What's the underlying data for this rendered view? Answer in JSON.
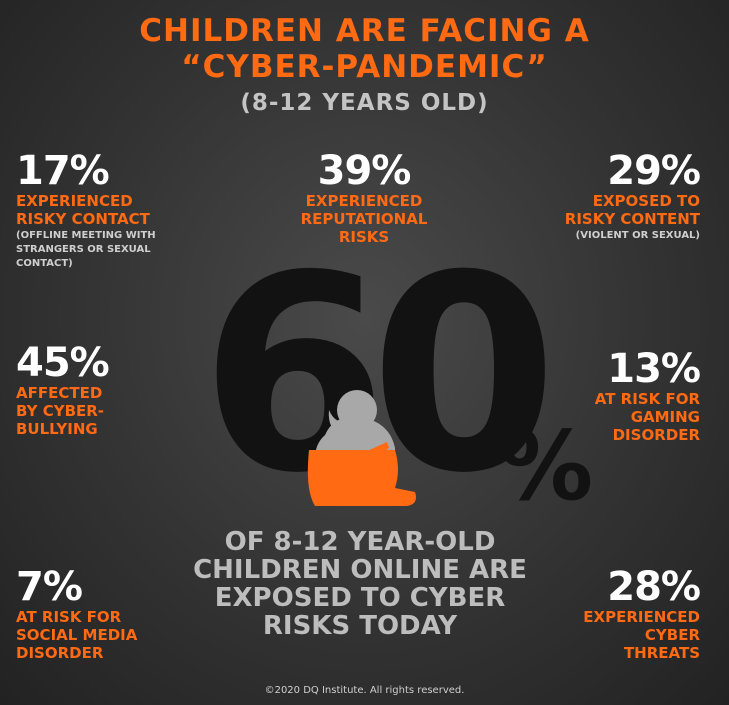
{
  "header": {
    "title_line1": "CHILDREN ARE FACING A",
    "title_line2": "“CYBER-PANDEMIC”",
    "subtitle": "(8-12 YEARS OLD)"
  },
  "stats": {
    "risky_contact": {
      "percent": "17%",
      "line1": "EXPERIENCED",
      "line2": "RISKY CONTACT",
      "note1": "(OFFLINE MEETING WITH",
      "note2": "STRANGERS OR SEXUAL",
      "note3": "CONTACT)"
    },
    "reputational": {
      "percent": "39%",
      "line1": "EXPERIENCED",
      "line2": "REPUTATIONAL",
      "line3": "RISKS"
    },
    "risky_content": {
      "percent": "29%",
      "line1": "EXPOSED TO",
      "line2": "RISKY CONTENT",
      "note1": "(VIOLENT OR SEXUAL)"
    },
    "cyberbullying": {
      "percent": "45%",
      "line1": "AFFECTED",
      "line2": "BY CYBER-",
      "line3": "BULLYING"
    },
    "gaming": {
      "percent": "13%",
      "line1": "AT RISK FOR",
      "line2": "GAMING",
      "line3": "DISORDER"
    },
    "social_media": {
      "percent": "7%",
      "line1": "AT RISK FOR",
      "line2": "SOCIAL MEDIA",
      "line3": "DISORDER"
    },
    "cyber_threats": {
      "percent": "28%",
      "line1": "EXPERIENCED",
      "line2": "CYBER",
      "line3": "THREATS"
    }
  },
  "hero": {
    "big_number": "60",
    "big_percent_sign": "%",
    "line1": "OF 8-12 YEAR-OLD",
    "line2": "CHILDREN ONLINE ARE",
    "line3": "EXPOSED TO CYBER",
    "line4": "RISKS TODAY"
  },
  "footer": {
    "copyright": "©2020 DQ Institute. All rights reserved."
  },
  "colors": {
    "accent": "#ff6a13",
    "background": "#333333",
    "big_number": "#121212",
    "silhouette_grey": "#a8a8a8"
  },
  "icons": {
    "child": "sad-child-silhouette-icon"
  }
}
